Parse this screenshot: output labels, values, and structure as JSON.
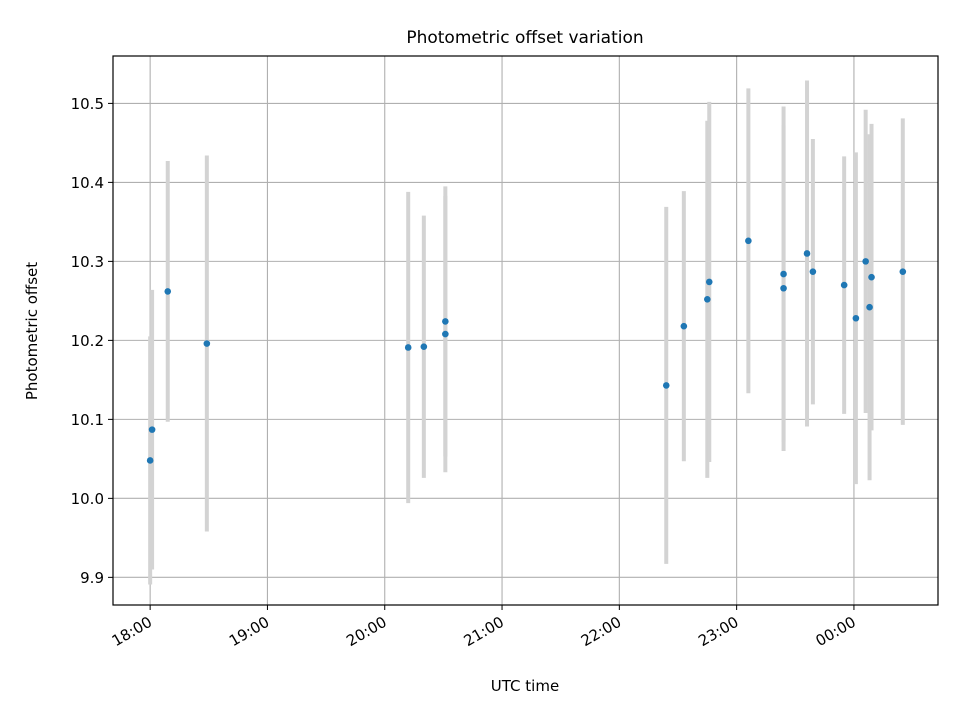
{
  "chart_data": {
    "type": "scatter",
    "title": "Photometric offset variation",
    "xlabel": "UTC time",
    "ylabel": "Photometric offset",
    "x_axis_type": "time",
    "x_tick_labels": [
      "18:00",
      "19:00",
      "20:00",
      "21:00",
      "22:00",
      "23:00",
      "00:00"
    ],
    "x_ticks": [
      "18:00",
      "19:00",
      "20:00",
      "21:00",
      "22:00",
      "23:00",
      "00:00 (+1 day)"
    ],
    "xlim": [
      "17:41",
      "00:43 (+1 day)"
    ],
    "ylim": [
      9.865,
      10.56
    ],
    "y_ticks": [
      9.9,
      10.0,
      10.1,
      10.2,
      10.3,
      10.4,
      10.5
    ],
    "y_tick_labels": [
      "9.9",
      "10.0",
      "10.1",
      "10.2",
      "10.3",
      "10.4",
      "10.5"
    ],
    "grid": true,
    "marker_color": "#1f77b4",
    "errorbar_color": "#d3d3d3",
    "series": [
      {
        "points": [
          {
            "x": "18:00",
            "y": 10.048,
            "err": 0.157
          },
          {
            "x": "18:01",
            "y": 10.087,
            "err": 0.177
          },
          {
            "x": "18:09",
            "y": 10.262,
            "err": 0.165
          },
          {
            "x": "18:29",
            "y": 10.196,
            "err": 0.238
          },
          {
            "x": "20:12",
            "y": 10.191,
            "err": 0.197
          },
          {
            "x": "20:20",
            "y": 10.192,
            "err": 0.166
          },
          {
            "x": "20:31",
            "y": 10.208,
            "err": 0.175
          },
          {
            "x": "20:31",
            "y": 10.224,
            "err": 0.171
          },
          {
            "x": "22:24",
            "y": 10.143,
            "err": 0.226
          },
          {
            "x": "22:33",
            "y": 10.218,
            "err": 0.171
          },
          {
            "x": "22:45",
            "y": 10.252,
            "err": 0.226
          },
          {
            "x": "22:46",
            "y": 10.274,
            "err": 0.228
          },
          {
            "x": "23:06",
            "y": 10.326,
            "err": 0.193
          },
          {
            "x": "23:24",
            "y": 10.266,
            "err": 0.206
          },
          {
            "x": "23:24",
            "y": 10.284,
            "err": 0.212
          },
          {
            "x": "23:36",
            "y": 10.31,
            "err": 0.219
          },
          {
            "x": "23:39",
            "y": 10.287,
            "err": 0.168
          },
          {
            "x": "23:55",
            "y": 10.27,
            "err": 0.163
          },
          {
            "x": "00:01 (+1 day)",
            "y": 10.228,
            "err": 0.21
          },
          {
            "x": "00:06 (+1 day)",
            "y": 10.3,
            "err": 0.192
          },
          {
            "x": "00:08 (+1 day)",
            "y": 10.242,
            "err": 0.219
          },
          {
            "x": "00:09 (+1 day)",
            "y": 10.28,
            "err": 0.194
          },
          {
            "x": "00:25 (+1 day)",
            "y": 10.287,
            "err": 0.194
          }
        ]
      }
    ]
  }
}
